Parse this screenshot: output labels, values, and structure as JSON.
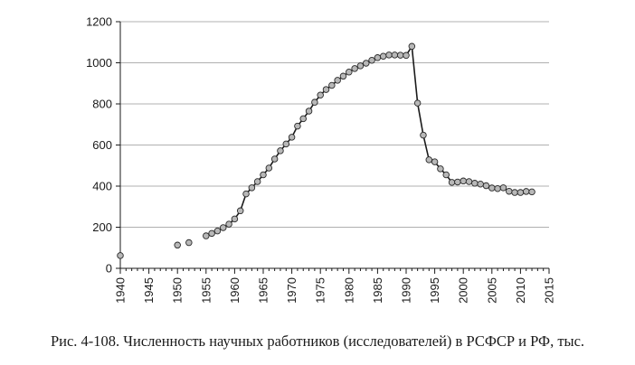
{
  "caption": "Рис. 4-108. Численность научных работников (исследователей) в РСФСР и РФ, тыс.",
  "colors": {
    "line": "#1a1a1a",
    "marker_fill": "#b8b8b8",
    "marker_stroke": "#2a2a2a",
    "grid": "#b0b0b0",
    "axis": "#1a1a1a"
  },
  "chart_data": {
    "type": "line",
    "title": "",
    "xlabel": "",
    "ylabel": "",
    "xlim": [
      1940,
      2015
    ],
    "ylim": [
      0,
      1200
    ],
    "xticks": [
      1940,
      1945,
      1950,
      1955,
      1960,
      1965,
      1970,
      1975,
      1980,
      1985,
      1990,
      1995,
      2000,
      2005,
      2010,
      2015
    ],
    "yticks": [
      0,
      200,
      400,
      600,
      800,
      1000,
      1200
    ],
    "grid": "horizontal",
    "legend": "none",
    "series": [
      {
        "values": [
          [
            1940,
            62
          ],
          [
            1950,
            113
          ],
          [
            1952,
            125
          ],
          [
            1955,
            158
          ],
          [
            1956,
            170
          ],
          [
            1957,
            182
          ],
          [
            1958,
            198
          ],
          [
            1959,
            215
          ],
          [
            1960,
            240
          ],
          [
            1961,
            280
          ],
          [
            1962,
            362
          ],
          [
            1963,
            392
          ],
          [
            1964,
            422
          ],
          [
            1965,
            455
          ],
          [
            1966,
            488
          ],
          [
            1967,
            532
          ],
          [
            1968,
            572
          ],
          [
            1969,
            605
          ],
          [
            1970,
            638
          ],
          [
            1971,
            692
          ],
          [
            1972,
            728
          ],
          [
            1973,
            765
          ],
          [
            1974,
            808
          ],
          [
            1975,
            843
          ],
          [
            1976,
            870
          ],
          [
            1977,
            890
          ],
          [
            1978,
            915
          ],
          [
            1979,
            935
          ],
          [
            1980,
            955
          ],
          [
            1981,
            972
          ],
          [
            1982,
            985
          ],
          [
            1983,
            998
          ],
          [
            1984,
            1012
          ],
          [
            1985,
            1025
          ],
          [
            1986,
            1032
          ],
          [
            1987,
            1038
          ],
          [
            1988,
            1038
          ],
          [
            1989,
            1037
          ],
          [
            1990,
            1036
          ],
          [
            1991,
            1080
          ],
          [
            1992,
            804
          ],
          [
            1993,
            648
          ],
          [
            1994,
            528
          ],
          [
            1995,
            518
          ],
          [
            1996,
            484
          ],
          [
            1997,
            455
          ],
          [
            1998,
            418
          ],
          [
            1999,
            420
          ],
          [
            2000,
            425
          ],
          [
            2001,
            422
          ],
          [
            2002,
            414
          ],
          [
            2003,
            410
          ],
          [
            2004,
            402
          ],
          [
            2005,
            391
          ],
          [
            2006,
            388
          ],
          [
            2007,
            392
          ],
          [
            2008,
            375
          ],
          [
            2009,
            369
          ],
          [
            2010,
            369
          ],
          [
            2011,
            374
          ],
          [
            2012,
            372
          ]
        ],
        "connected_from": 1955
      }
    ]
  }
}
